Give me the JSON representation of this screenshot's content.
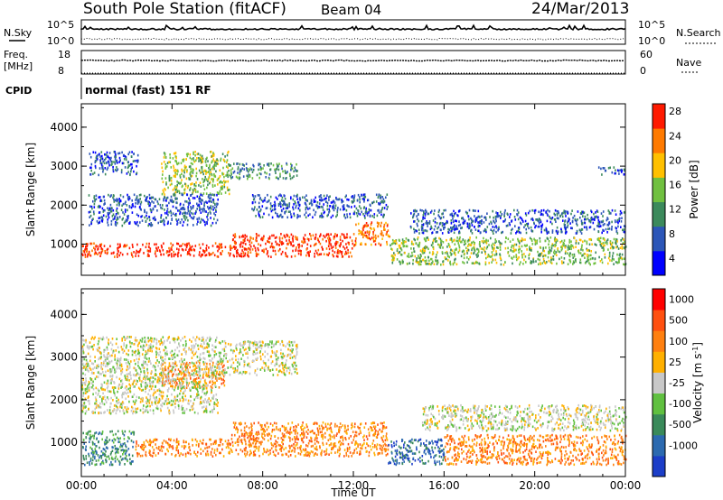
{
  "header": {
    "station": "South Pole Station (fitACF)",
    "beam": "Beam 04",
    "date": "24/Mar/2013"
  },
  "left_labels": {
    "nsky": "N.Sky",
    "nsky_ticks": [
      "10^5",
      "10^0"
    ],
    "freq": "Freq.",
    "freq_unit": "[MHz]",
    "freq_ticks": [
      "18",
      "8"
    ],
    "cpid": "CPID"
  },
  "right_labels": {
    "nsearch": "N.Search",
    "nsearch_ticks": [
      "10^5",
      "10^0"
    ],
    "nave": "Nave",
    "nave_ticks": [
      "60",
      "0"
    ]
  },
  "cpid_text": "normal (fast) 151 RF",
  "chart_data": [
    {
      "type": "heatmap",
      "name": "power",
      "ylabel": "Slant Range [km]",
      "ylim": [
        200,
        4600
      ],
      "yticks": [
        "1000",
        "2000",
        "3000",
        "4000"
      ],
      "xlim": [
        0,
        24
      ],
      "colorbar": {
        "label": "Power [dB]",
        "ticks": [
          "4",
          "8",
          "12",
          "16",
          "20",
          "24",
          "28"
        ],
        "colors": [
          "#0000ff",
          "#2c56b8",
          "#3c8a5c",
          "#70c040",
          "#ffc000",
          "#ff7a00",
          "#ff1a00"
        ]
      },
      "scatter_bands": [
        {
          "t0": 0.0,
          "t1": 6.6,
          "r0": 700,
          "r1": 1050,
          "level": 6
        },
        {
          "t0": 6.6,
          "t1": 12.0,
          "r0": 700,
          "r1": 1300,
          "level": 6
        },
        {
          "t0": 12.0,
          "t1": 13.6,
          "r0": 1000,
          "r1": 1600,
          "level": 5
        },
        {
          "t0": 13.6,
          "t1": 24.0,
          "r0": 500,
          "r1": 1200,
          "level": 3
        },
        {
          "t0": 0.3,
          "t1": 2.5,
          "r0": 2800,
          "r1": 3400,
          "level": 1
        },
        {
          "t0": 3.5,
          "t1": 6.5,
          "r0": 2300,
          "r1": 3400,
          "level": 3
        },
        {
          "t0": 6.5,
          "t1": 9.5,
          "r0": 2700,
          "r1": 3100,
          "level": 2
        },
        {
          "t0": 0.3,
          "t1": 6.0,
          "r0": 1500,
          "r1": 2300,
          "level": 1
        },
        {
          "t0": 7.5,
          "t1": 13.5,
          "r0": 1700,
          "r1": 2300,
          "level": 1
        },
        {
          "t0": 14.5,
          "t1": 24.0,
          "r0": 1300,
          "r1": 1900,
          "level": 1
        },
        {
          "t0": 22.8,
          "t1": 24.0,
          "r0": 2800,
          "r1": 3000,
          "level": 1
        }
      ]
    },
    {
      "type": "heatmap",
      "name": "velocity",
      "ylabel": "Slant Range [km]",
      "ylim": [
        200,
        4600
      ],
      "yticks": [
        "1000",
        "2000",
        "3000",
        "4000"
      ],
      "xlim": [
        0,
        24
      ],
      "xticks": [
        "00:00",
        "04:00",
        "08:00",
        "12:00",
        "16:00",
        "20:00",
        "00:00"
      ],
      "xlabel": "Time UT",
      "colorbar": {
        "label": "Velocity [m s^-1]",
        "ticks": [
          "1000",
          "500",
          "100",
          "25",
          "-25",
          "-100",
          "-500",
          "-1000"
        ],
        "colors": [
          "#1c3ec8",
          "#2c6ab0",
          "#3a8a5a",
          "#60c040",
          "#c8c8c8",
          "#ffb000",
          "#ff8010",
          "#ff5010",
          "#ff0000"
        ]
      },
      "scatter_bands": [
        {
          "t0": 0.0,
          "t1": 2.3,
          "r0": 500,
          "r1": 1300,
          "level": 2
        },
        {
          "t0": 2.3,
          "t1": 6.6,
          "r0": 700,
          "r1": 1100,
          "level": 6
        },
        {
          "t0": 6.6,
          "t1": 13.5,
          "r0": 700,
          "r1": 1500,
          "level": 6
        },
        {
          "t0": 13.5,
          "t1": 16.0,
          "r0": 500,
          "r1": 1100,
          "level": 1
        },
        {
          "t0": 16.0,
          "t1": 24.0,
          "r0": 500,
          "r1": 1200,
          "level": 6
        },
        {
          "t0": 3.5,
          "t1": 6.3,
          "r0": 2300,
          "r1": 2900,
          "level": 6
        },
        {
          "t0": 0.0,
          "t1": 6.0,
          "r0": 1700,
          "r1": 3500,
          "level": 4
        },
        {
          "t0": 6.0,
          "t1": 9.5,
          "r0": 2600,
          "r1": 3400,
          "level": 4
        },
        {
          "t0": 15.0,
          "t1": 24.0,
          "r0": 1300,
          "r1": 1900,
          "level": 4
        }
      ]
    }
  ]
}
